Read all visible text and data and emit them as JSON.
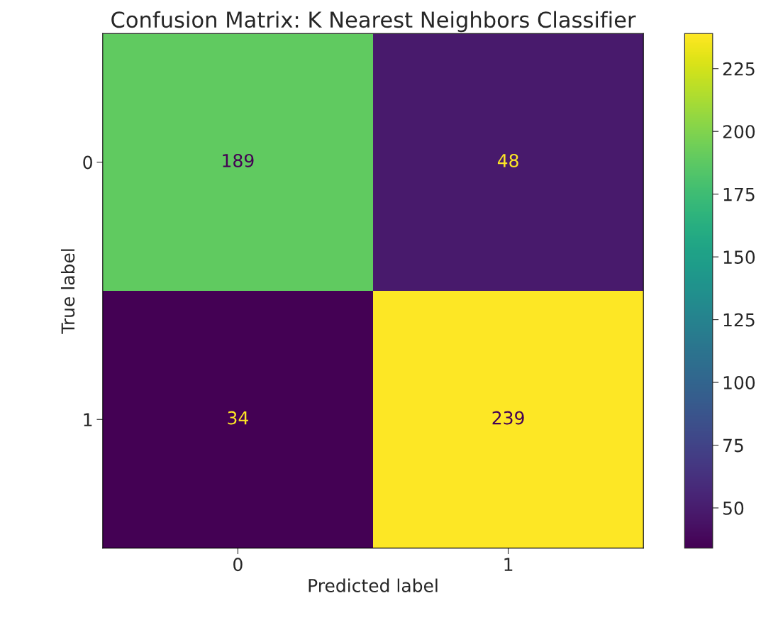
{
  "chart_data": {
    "type": "heatmap",
    "title": "Confusion Matrix: K Nearest Neighbors Classifier",
    "xlabel": "Predicted label",
    "ylabel": "True label",
    "categories": [
      "0",
      "1"
    ],
    "y_categories": [
      "0",
      "1"
    ],
    "cells": [
      [
        189,
        48
      ],
      [
        34,
        239
      ]
    ],
    "clim": [
      34,
      239
    ],
    "cticks": [
      50,
      75,
      100,
      125,
      150,
      175,
      200,
      225
    ],
    "data_labels": true
  }
}
